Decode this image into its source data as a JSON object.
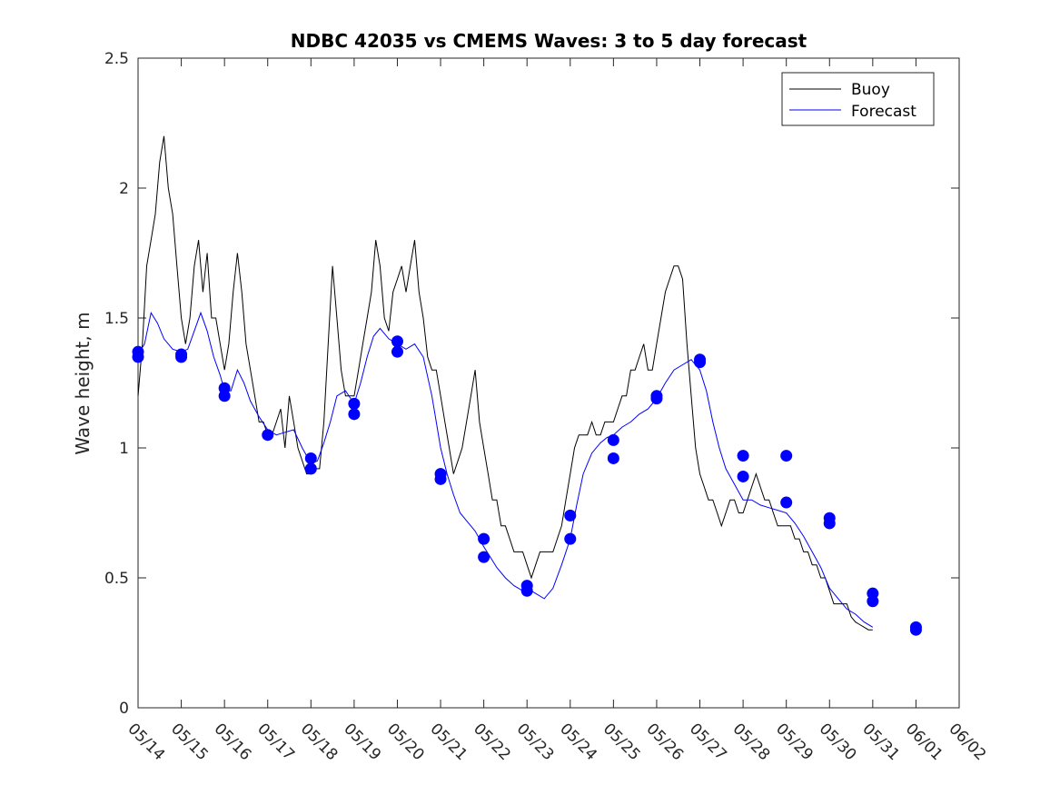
{
  "chart_data": {
    "type": "line",
    "title": "NDBC 42035 vs CMEMS Waves: 3 to 5 day forecast",
    "xlabel": "",
    "ylabel": "Wave height, m",
    "x_tick_labels": [
      "05/14",
      "05/15",
      "05/16",
      "05/17",
      "05/18",
      "05/19",
      "05/20",
      "05/21",
      "05/22",
      "05/23",
      "05/24",
      "05/25",
      "05/26",
      "05/27",
      "05/28",
      "05/29",
      "05/30",
      "05/31",
      "06/01",
      "06/02"
    ],
    "xlim": [
      0,
      19
    ],
    "ylim": [
      0,
      2.5
    ],
    "y_ticks": [
      0,
      0.5,
      1,
      1.5,
      2,
      2.5
    ],
    "y_tick_labels": [
      "0",
      "0.5",
      "1",
      "1.5",
      "2",
      "2.5"
    ],
    "grid": false,
    "legend_position": "top-right",
    "colors": {
      "buoy": "#000000",
      "forecast": "#0000ff",
      "axis": "#262626"
    },
    "buoy": {
      "name": "Buoy",
      "points": [
        [
          0.0,
          1.2
        ],
        [
          0.1,
          1.4
        ],
        [
          0.2,
          1.7
        ],
        [
          0.3,
          1.8
        ],
        [
          0.4,
          1.9
        ],
        [
          0.5,
          2.1
        ],
        [
          0.6,
          2.2
        ],
        [
          0.7,
          2.0
        ],
        [
          0.8,
          1.9
        ],
        [
          0.9,
          1.7
        ],
        [
          1.0,
          1.5
        ],
        [
          1.1,
          1.4
        ],
        [
          1.2,
          1.5
        ],
        [
          1.3,
          1.7
        ],
        [
          1.4,
          1.8
        ],
        [
          1.5,
          1.6
        ],
        [
          1.6,
          1.75
        ],
        [
          1.7,
          1.5
        ],
        [
          1.8,
          1.5
        ],
        [
          1.9,
          1.4
        ],
        [
          2.0,
          1.3
        ],
        [
          2.1,
          1.4
        ],
        [
          2.2,
          1.6
        ],
        [
          2.3,
          1.75
        ],
        [
          2.4,
          1.6
        ],
        [
          2.5,
          1.4
        ],
        [
          2.6,
          1.3
        ],
        [
          2.7,
          1.2
        ],
        [
          2.8,
          1.1
        ],
        [
          2.9,
          1.1
        ],
        [
          3.0,
          1.05
        ],
        [
          3.1,
          1.05
        ],
        [
          3.2,
          1.1
        ],
        [
          3.3,
          1.15
        ],
        [
          3.4,
          1.0
        ],
        [
          3.5,
          1.2
        ],
        [
          3.6,
          1.1
        ],
        [
          3.7,
          1.0
        ],
        [
          3.8,
          0.95
        ],
        [
          3.9,
          0.9
        ],
        [
          4.0,
          0.9
        ],
        [
          4.1,
          0.92
        ],
        [
          4.2,
          0.92
        ],
        [
          4.3,
          1.1
        ],
        [
          4.4,
          1.4
        ],
        [
          4.5,
          1.7
        ],
        [
          4.6,
          1.5
        ],
        [
          4.7,
          1.3
        ],
        [
          4.8,
          1.2
        ],
        [
          4.9,
          1.2
        ],
        [
          5.0,
          1.2
        ],
        [
          5.1,
          1.3
        ],
        [
          5.2,
          1.4
        ],
        [
          5.3,
          1.5
        ],
        [
          5.4,
          1.6
        ],
        [
          5.5,
          1.8
        ],
        [
          5.6,
          1.7
        ],
        [
          5.7,
          1.5
        ],
        [
          5.8,
          1.45
        ],
        [
          5.9,
          1.6
        ],
        [
          6.0,
          1.65
        ],
        [
          6.1,
          1.7
        ],
        [
          6.2,
          1.6
        ],
        [
          6.3,
          1.7
        ],
        [
          6.4,
          1.8
        ],
        [
          6.5,
          1.6
        ],
        [
          6.6,
          1.5
        ],
        [
          6.7,
          1.35
        ],
        [
          6.8,
          1.3
        ],
        [
          6.9,
          1.3
        ],
        [
          7.0,
          1.2
        ],
        [
          7.1,
          1.1
        ],
        [
          7.2,
          1.0
        ],
        [
          7.3,
          0.9
        ],
        [
          7.4,
          0.95
        ],
        [
          7.5,
          1.0
        ],
        [
          7.6,
          1.1
        ],
        [
          7.7,
          1.2
        ],
        [
          7.8,
          1.3
        ],
        [
          7.9,
          1.1
        ],
        [
          8.0,
          1.0
        ],
        [
          8.1,
          0.9
        ],
        [
          8.2,
          0.8
        ],
        [
          8.3,
          0.8
        ],
        [
          8.4,
          0.7
        ],
        [
          8.5,
          0.7
        ],
        [
          8.6,
          0.65
        ],
        [
          8.7,
          0.6
        ],
        [
          8.8,
          0.6
        ],
        [
          8.9,
          0.6
        ],
        [
          9.0,
          0.55
        ],
        [
          9.1,
          0.5
        ],
        [
          9.2,
          0.55
        ],
        [
          9.3,
          0.6
        ],
        [
          9.4,
          0.6
        ],
        [
          9.5,
          0.6
        ],
        [
          9.6,
          0.6
        ],
        [
          9.7,
          0.65
        ],
        [
          9.8,
          0.7
        ],
        [
          9.9,
          0.8
        ],
        [
          10.0,
          0.9
        ],
        [
          10.1,
          1.0
        ],
        [
          10.2,
          1.05
        ],
        [
          10.3,
          1.05
        ],
        [
          10.4,
          1.05
        ],
        [
          10.5,
          1.1
        ],
        [
          10.6,
          1.05
        ],
        [
          10.7,
          1.05
        ],
        [
          10.8,
          1.1
        ],
        [
          10.9,
          1.1
        ],
        [
          11.0,
          1.1
        ],
        [
          11.1,
          1.15
        ],
        [
          11.2,
          1.2
        ],
        [
          11.3,
          1.2
        ],
        [
          11.4,
          1.3
        ],
        [
          11.5,
          1.3
        ],
        [
          11.6,
          1.35
        ],
        [
          11.7,
          1.4
        ],
        [
          11.8,
          1.3
        ],
        [
          11.9,
          1.3
        ],
        [
          12.0,
          1.4
        ],
        [
          12.1,
          1.5
        ],
        [
          12.2,
          1.6
        ],
        [
          12.3,
          1.65
        ],
        [
          12.4,
          1.7
        ],
        [
          12.5,
          1.7
        ],
        [
          12.6,
          1.65
        ],
        [
          12.7,
          1.4
        ],
        [
          12.8,
          1.2
        ],
        [
          12.9,
          1.0
        ],
        [
          13.0,
          0.9
        ],
        [
          13.1,
          0.85
        ],
        [
          13.2,
          0.8
        ],
        [
          13.3,
          0.8
        ],
        [
          13.4,
          0.75
        ],
        [
          13.5,
          0.7
        ],
        [
          13.6,
          0.75
        ],
        [
          13.7,
          0.8
        ],
        [
          13.8,
          0.8
        ],
        [
          13.9,
          0.75
        ],
        [
          14.0,
          0.75
        ],
        [
          14.1,
          0.8
        ],
        [
          14.2,
          0.85
        ],
        [
          14.3,
          0.9
        ],
        [
          14.4,
          0.85
        ],
        [
          14.5,
          0.8
        ],
        [
          14.6,
          0.8
        ],
        [
          14.7,
          0.75
        ],
        [
          14.8,
          0.7
        ],
        [
          14.9,
          0.7
        ],
        [
          15.0,
          0.7
        ],
        [
          15.1,
          0.7
        ],
        [
          15.2,
          0.65
        ],
        [
          15.3,
          0.65
        ],
        [
          15.4,
          0.6
        ],
        [
          15.5,
          0.6
        ],
        [
          15.6,
          0.55
        ],
        [
          15.7,
          0.55
        ],
        [
          15.8,
          0.5
        ],
        [
          15.9,
          0.5
        ],
        [
          16.0,
          0.45
        ],
        [
          16.1,
          0.4
        ],
        [
          16.2,
          0.4
        ],
        [
          16.3,
          0.4
        ],
        [
          16.4,
          0.4
        ],
        [
          16.5,
          0.35
        ],
        [
          16.6,
          0.33
        ],
        [
          16.7,
          0.32
        ],
        [
          16.8,
          0.31
        ],
        [
          16.9,
          0.3
        ],
        [
          17.0,
          0.3
        ]
      ]
    },
    "forecast": {
      "name": "Forecast",
      "points": [
        [
          0.0,
          1.36
        ],
        [
          0.15,
          1.4
        ],
        [
          0.3,
          1.52
        ],
        [
          0.45,
          1.48
        ],
        [
          0.6,
          1.42
        ],
        [
          0.8,
          1.38
        ],
        [
          1.0,
          1.37
        ],
        [
          1.15,
          1.38
        ],
        [
          1.3,
          1.45
        ],
        [
          1.45,
          1.52
        ],
        [
          1.6,
          1.45
        ],
        [
          1.75,
          1.35
        ],
        [
          1.9,
          1.28
        ],
        [
          2.0,
          1.22
        ],
        [
          2.15,
          1.22
        ],
        [
          2.3,
          1.3
        ],
        [
          2.45,
          1.25
        ],
        [
          2.6,
          1.18
        ],
        [
          2.8,
          1.12
        ],
        [
          3.0,
          1.07
        ],
        [
          3.2,
          1.05
        ],
        [
          3.4,
          1.06
        ],
        [
          3.6,
          1.07
        ],
        [
          3.8,
          1.0
        ],
        [
          4.0,
          0.94
        ],
        [
          4.15,
          0.95
        ],
        [
          4.3,
          1.02
        ],
        [
          4.45,
          1.1
        ],
        [
          4.6,
          1.2
        ],
        [
          4.8,
          1.22
        ],
        [
          5.0,
          1.17
        ],
        [
          5.15,
          1.25
        ],
        [
          5.3,
          1.35
        ],
        [
          5.45,
          1.43
        ],
        [
          5.6,
          1.46
        ],
        [
          5.8,
          1.42
        ],
        [
          6.0,
          1.4
        ],
        [
          6.2,
          1.38
        ],
        [
          6.4,
          1.4
        ],
        [
          6.6,
          1.35
        ],
        [
          6.8,
          1.2
        ],
        [
          7.0,
          1.0
        ],
        [
          7.15,
          0.9
        ],
        [
          7.3,
          0.82
        ],
        [
          7.45,
          0.75
        ],
        [
          7.6,
          0.72
        ],
        [
          7.8,
          0.68
        ],
        [
          8.0,
          0.62
        ],
        [
          8.15,
          0.58
        ],
        [
          8.3,
          0.54
        ],
        [
          8.5,
          0.5
        ],
        [
          8.7,
          0.47
        ],
        [
          8.9,
          0.45
        ],
        [
          9.0,
          0.46
        ],
        [
          9.2,
          0.44
        ],
        [
          9.4,
          0.42
        ],
        [
          9.6,
          0.46
        ],
        [
          9.8,
          0.55
        ],
        [
          10.0,
          0.65
        ],
        [
          10.15,
          0.78
        ],
        [
          10.3,
          0.9
        ],
        [
          10.5,
          0.98
        ],
        [
          10.7,
          1.02
        ],
        [
          10.85,
          1.04
        ],
        [
          11.0,
          1.05
        ],
        [
          11.2,
          1.08
        ],
        [
          11.4,
          1.1
        ],
        [
          11.6,
          1.13
        ],
        [
          11.8,
          1.15
        ],
        [
          12.0,
          1.19
        ],
        [
          12.2,
          1.25
        ],
        [
          12.4,
          1.3
        ],
        [
          12.6,
          1.32
        ],
        [
          12.8,
          1.34
        ],
        [
          13.0,
          1.3
        ],
        [
          13.15,
          1.22
        ],
        [
          13.3,
          1.1
        ],
        [
          13.45,
          1.0
        ],
        [
          13.6,
          0.92
        ],
        [
          13.8,
          0.86
        ],
        [
          14.0,
          0.8
        ],
        [
          14.2,
          0.8
        ],
        [
          14.4,
          0.78
        ],
        [
          14.6,
          0.77
        ],
        [
          14.8,
          0.76
        ],
        [
          15.0,
          0.75
        ],
        [
          15.2,
          0.71
        ],
        [
          15.4,
          0.66
        ],
        [
          15.6,
          0.6
        ],
        [
          15.8,
          0.54
        ],
        [
          16.0,
          0.46
        ],
        [
          16.2,
          0.42
        ],
        [
          16.4,
          0.38
        ],
        [
          16.6,
          0.36
        ],
        [
          16.8,
          0.33
        ],
        [
          17.0,
          0.31
        ]
      ]
    },
    "forecast_markers": [
      [
        0.0,
        1.35
      ],
      [
        0.0,
        1.37
      ],
      [
        1.0,
        1.35
      ],
      [
        1.0,
        1.36
      ],
      [
        2.0,
        1.2
      ],
      [
        2.0,
        1.23
      ],
      [
        3.0,
        1.05
      ],
      [
        4.0,
        0.92
      ],
      [
        4.0,
        0.96
      ],
      [
        5.0,
        1.13
      ],
      [
        5.0,
        1.17
      ],
      [
        6.0,
        1.37
      ],
      [
        6.0,
        1.41
      ],
      [
        7.0,
        0.88
      ],
      [
        7.0,
        0.9
      ],
      [
        8.0,
        0.58
      ],
      [
        8.0,
        0.65
      ],
      [
        9.0,
        0.45
      ],
      [
        9.0,
        0.47
      ],
      [
        10.0,
        0.65
      ],
      [
        10.0,
        0.74
      ],
      [
        11.0,
        0.96
      ],
      [
        11.0,
        1.03
      ],
      [
        12.0,
        1.19
      ],
      [
        12.0,
        1.2
      ],
      [
        13.0,
        1.33
      ],
      [
        13.0,
        1.34
      ],
      [
        14.0,
        0.89
      ],
      [
        14.0,
        0.97
      ],
      [
        15.0,
        0.79
      ],
      [
        15.0,
        0.97
      ],
      [
        16.0,
        0.71
      ],
      [
        16.0,
        0.73
      ],
      [
        17.0,
        0.41
      ],
      [
        17.0,
        0.44
      ],
      [
        18.0,
        0.3
      ],
      [
        18.0,
        0.31
      ]
    ],
    "legend": [
      {
        "name": "Buoy",
        "color": "#000000"
      },
      {
        "name": "Forecast",
        "color": "#0000ff"
      }
    ]
  }
}
